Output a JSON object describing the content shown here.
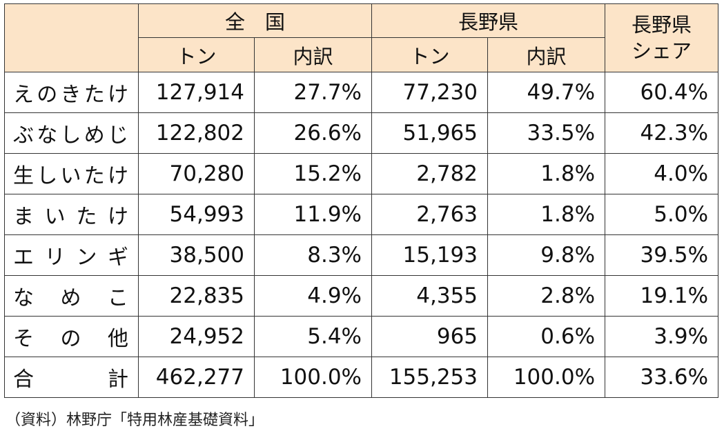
{
  "header": {
    "national": "全　国",
    "nagano": "長野県",
    "share_line1": "長野県",
    "share_line2": "シェア",
    "ton": "トン",
    "breakdown": "内訳"
  },
  "rows": [
    {
      "name_chars": [
        "え",
        "の",
        "き",
        "た",
        "け"
      ],
      "national_ton": "127,914",
      "national_pct": "27.7%",
      "nagano_ton": "77,230",
      "nagano_pct": "49.7%",
      "share": "60.4%"
    },
    {
      "name_chars": [
        "ぶ",
        "な",
        "し",
        "め",
        "じ"
      ],
      "national_ton": "122,802",
      "national_pct": "26.6%",
      "nagano_ton": "51,965",
      "nagano_pct": "33.5%",
      "share": "42.3%"
    },
    {
      "name_chars": [
        "生",
        "し",
        "い",
        "た",
        "け"
      ],
      "national_ton": "70,280",
      "national_pct": "15.2%",
      "nagano_ton": "2,782",
      "nagano_pct": "1.8%",
      "share": "4.0%"
    },
    {
      "name_chars": [
        "ま",
        "い",
        "た",
        "け"
      ],
      "national_ton": "54,993",
      "national_pct": "11.9%",
      "nagano_ton": "2,763",
      "nagano_pct": "1.8%",
      "share": "5.0%"
    },
    {
      "name_chars": [
        "エ",
        "リ",
        "ン",
        "ギ"
      ],
      "national_ton": "38,500",
      "national_pct": "8.3%",
      "nagano_ton": "15,193",
      "nagano_pct": "9.8%",
      "share": "39.5%"
    },
    {
      "name_chars": [
        "な",
        "め",
        "こ"
      ],
      "national_ton": "22,835",
      "national_pct": "4.9%",
      "nagano_ton": "4,355",
      "nagano_pct": "2.8%",
      "share": "19.1%"
    },
    {
      "name_chars": [
        "そ",
        "の",
        "他"
      ],
      "national_ton": "24,952",
      "national_pct": "5.4%",
      "nagano_ton": "965",
      "nagano_pct": "0.6%",
      "share": "3.9%"
    },
    {
      "name_chars": [
        "合",
        "計"
      ],
      "national_ton": "462,277",
      "national_pct": "100.0%",
      "nagano_ton": "155,253",
      "nagano_pct": "100.0%",
      "share": "33.6%"
    }
  ],
  "source": "（資料）林野庁「特用林産基礎資料」"
}
